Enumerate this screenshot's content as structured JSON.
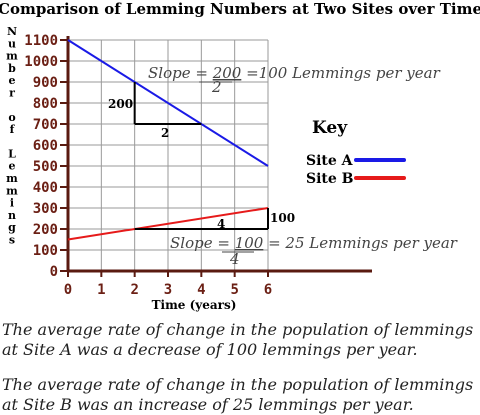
{
  "chart_data": {
    "type": "line",
    "title": "Comparison of Lemming Numbers at Two Sites over Time",
    "xlabel": "Time (years)",
    "ylabel": "Number of Lemmings",
    "xlim": [
      0,
      6
    ],
    "ylim": [
      0,
      1100
    ],
    "x_ticks": [
      "0",
      "1",
      "2",
      "3",
      "4",
      "5",
      "6"
    ],
    "y_ticks": [
      "0",
      "100",
      "200",
      "300",
      "400",
      "500",
      "600",
      "700",
      "800",
      "900",
      "1000",
      "1100"
    ],
    "grid": true,
    "series": [
      {
        "name": "Site A",
        "color": "#1a1ae6",
        "x": [
          0,
          6
        ],
        "y": [
          1100,
          500
        ]
      },
      {
        "name": "Site B",
        "color": "#e61a1a",
        "x": [
          0,
          6
        ],
        "y": [
          150,
          300
        ]
      }
    ],
    "legend": {
      "title": "Key",
      "placement": "right"
    },
    "annotations": {
      "site_a": {
        "prefix": "Slope = ",
        "numerator": "200",
        "denominator": "2",
        "suffix": " =100 Lemmings per year",
        "rise_label": "200",
        "run_label": "2"
      },
      "site_b": {
        "prefix": "Slope = ",
        "numerator": "100",
        "denominator": "4",
        "suffix": " = 25 Lemmings per year",
        "rise_label": "100",
        "run_label": "4"
      }
    }
  },
  "notes": {
    "site_a": "The average rate of change in the population of lemmings at Site A was a decrease of 100 lemmings per year.",
    "site_b": "The average rate of change in the population of lemmings at Site B was an increase of 25 lemmings per year."
  }
}
